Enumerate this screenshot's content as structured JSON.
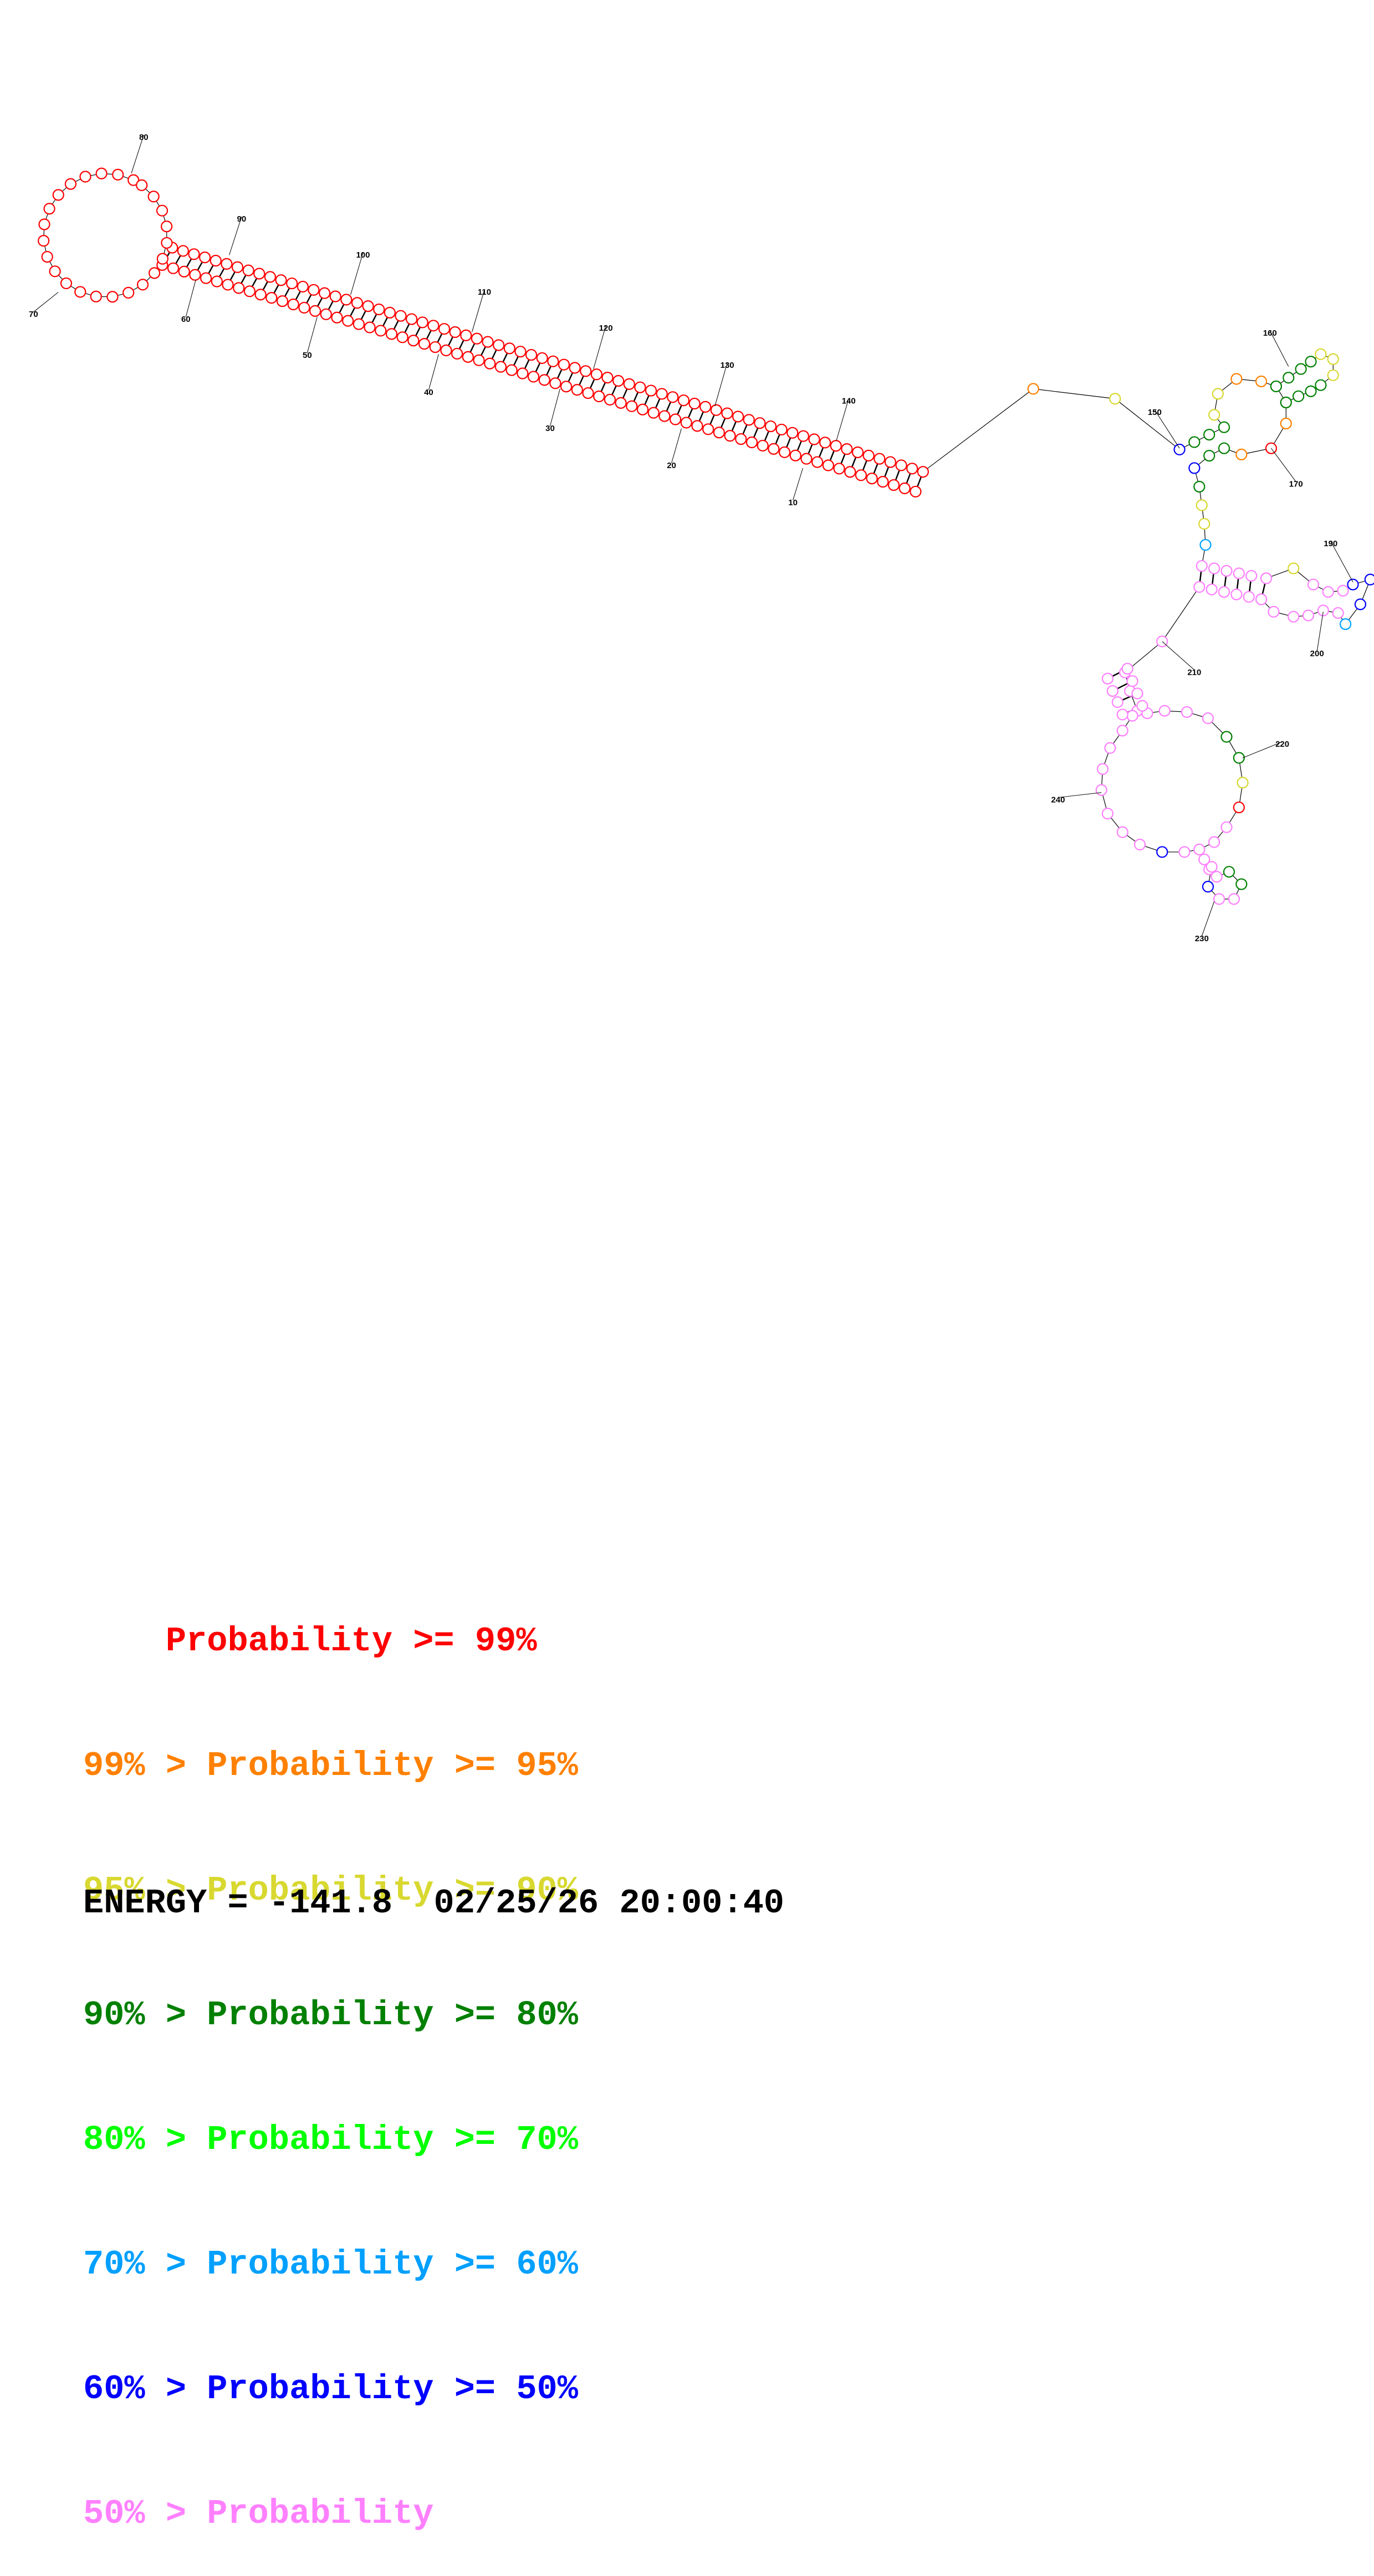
{
  "sequence_labels": [
    "10",
    "20",
    "30",
    "40",
    "50",
    "60",
    "70",
    "80",
    "90",
    "100",
    "110",
    "120",
    "130",
    "140",
    "150",
    "160",
    "170",
    "190",
    "200",
    "210",
    "220",
    "230",
    "240"
  ],
  "probability_colors": {
    "p99": "#ff0000",
    "p95": "#ff8000",
    "p90": "#d8d830",
    "p80": "#008000",
    "p70": "#00ff00",
    "p60": "#00a0ff",
    "p50": "#0000ff",
    "plow": "#ff80ff"
  },
  "legend": [
    {
      "prefix": "    ",
      "text": "Probability >= 99%",
      "color": "#ff0000"
    },
    {
      "prefix": "99% > ",
      "text": "Probability >= 95%",
      "color": "#ff8000"
    },
    {
      "prefix": "95% > ",
      "text": "Probability >= 90%",
      "color": "#d8d830"
    },
    {
      "prefix": "90% > ",
      "text": "Probability >= 80%",
      "color": "#008000"
    },
    {
      "prefix": "80% > ",
      "text": "Probability >= 70%",
      "color": "#00ff00"
    },
    {
      "prefix": "70% > ",
      "text": "Probability >= 60%",
      "color": "#00a0ff"
    },
    {
      "prefix": "60% > ",
      "text": "Probability >= 50%",
      "color": "#0000ff"
    },
    {
      "prefix": "50% > ",
      "text": "Probability",
      "color": "#ff80ff"
    }
  ],
  "energy_text": "ENERGY = -141.8  02/25/26 20:00:40"
}
